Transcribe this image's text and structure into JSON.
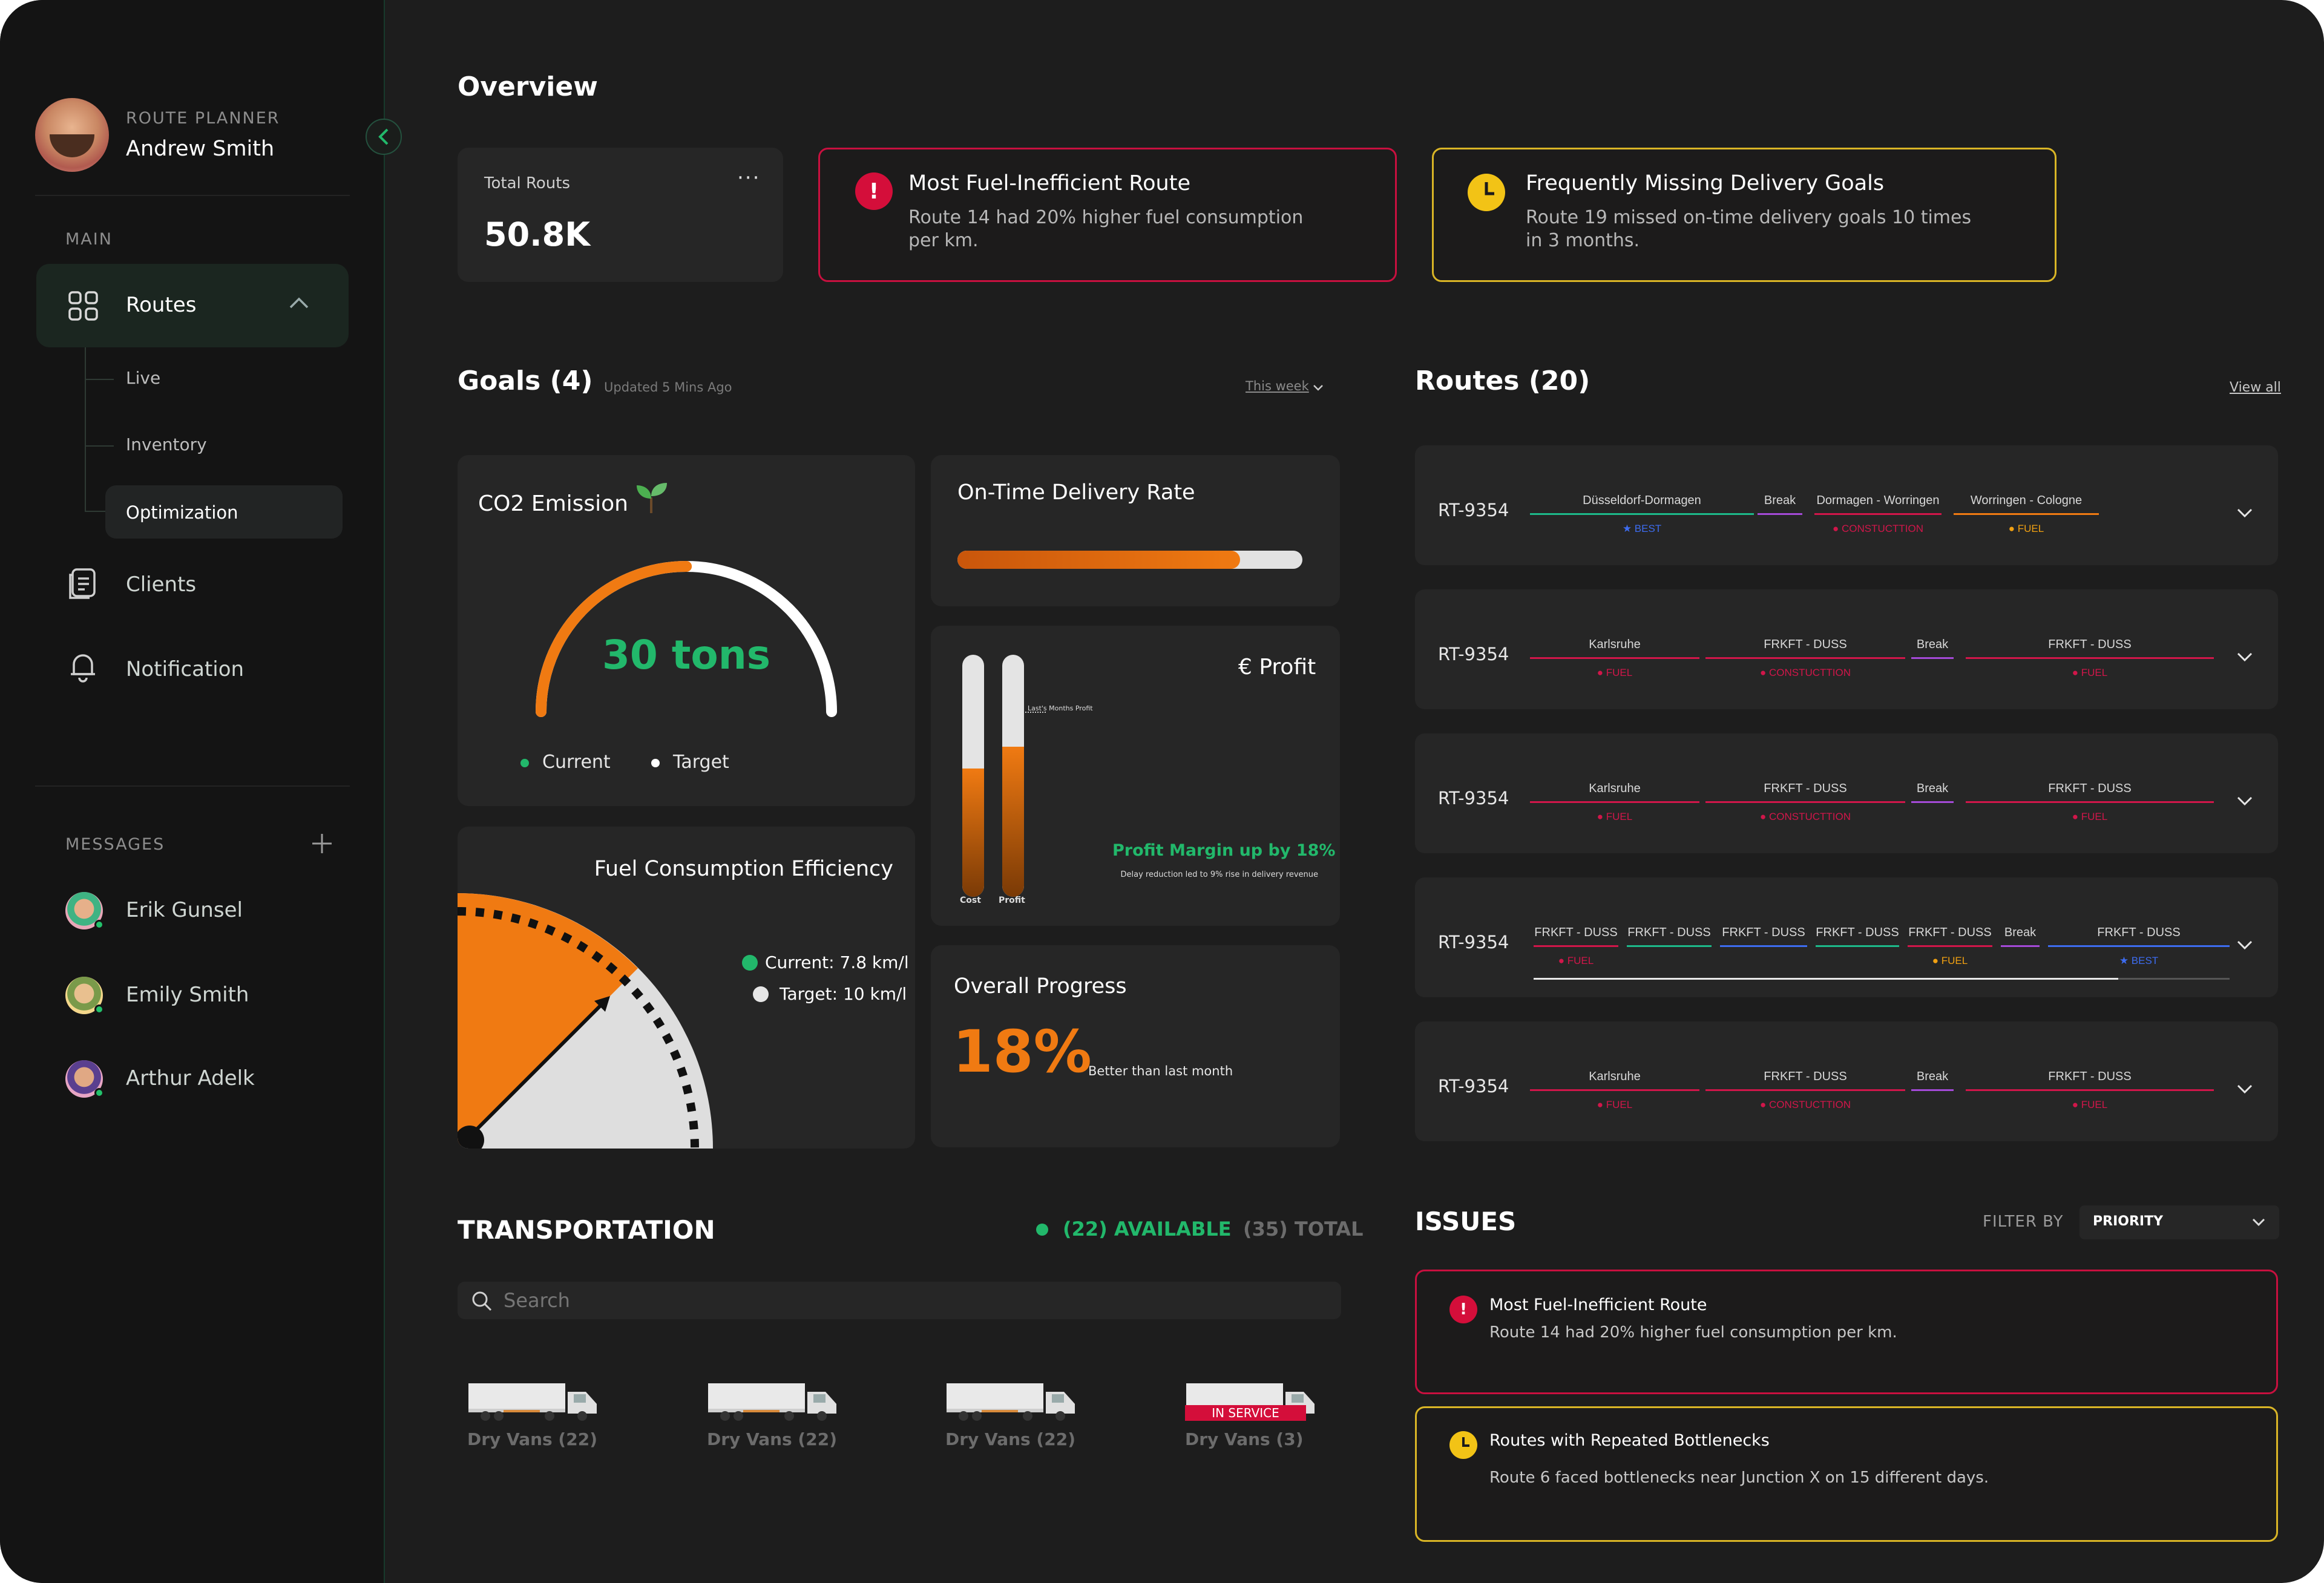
{
  "sidebar": {
    "user": {
      "role": "ROUTE PLANNER",
      "name": "Andrew Smith"
    },
    "main_label": "MAIN",
    "nav": {
      "routes": "Routes",
      "sub": [
        "Live",
        "Inventory",
        "Optimization"
      ],
      "clients": "Clients",
      "notification": "Notification"
    },
    "messages_label": "MESSAGES",
    "messages": [
      "Erik Gunsel",
      "Emily Smith",
      "Arthur Adelk"
    ]
  },
  "overview": {
    "title": "Overview",
    "total": {
      "label": "Total Routs",
      "value": "50.8K",
      "menu": "···"
    },
    "alert1": {
      "title": "Most Fuel-Inefficient Route",
      "text": "Route 14 had 20% higher fuel consumption per km."
    },
    "alert2": {
      "title": "Frequently Missing Delivery Goals",
      "text": "Route 19 missed on-time delivery goals 10 times in 3 months."
    }
  },
  "goals": {
    "title": "Goals (4)",
    "updated": "Updated 5 Mins Ago",
    "period": "This week",
    "co2": {
      "title": "CO2 Emission",
      "value": "30 tons",
      "legend_current": "Current",
      "legend_target": "Target",
      "progress": 0.5
    },
    "delivery": {
      "title": "On-Time Delivery Rate",
      "progress": 0.82
    },
    "profit": {
      "title": "€ Profit",
      "last_month_label": "Last's Months Profit",
      "headline": "Profit Margin up by 18%",
      "sub": "Delay reduction led to 9% rise in delivery revenue",
      "cost_label": "Cost",
      "profit_label": "Profit",
      "cost_fill": 0.53,
      "profit_fill": 0.62
    },
    "fuel": {
      "title": "Fuel Consumption Efficiency",
      "current": "Current: 7.8 km/l",
      "target": "Target: 10 km/l"
    },
    "overall": {
      "title": "Overall Progress",
      "value": "18%",
      "note": "Better than last month"
    }
  },
  "routes": {
    "title": "Routes (20)",
    "view_all": "View all",
    "rows": [
      {
        "id": "RT-9354",
        "segments": [
          {
            "label": "Düsseldorf-Dormagen",
            "tag": "★ BEST",
            "color": "#1db98a",
            "tagColor": "#3d6cf0"
          },
          {
            "label": "Break",
            "tag": "",
            "color": "#a44ad8",
            "tagColor": "#a44ad8"
          },
          {
            "label": "Dormagen - Worringen",
            "tag": "● CONSTUCTTION",
            "color": "#d1164a",
            "tagColor": "#d1164a"
          },
          {
            "label": "Worringen - Cologne",
            "tag": "● FUEL",
            "color": "#f07a12",
            "tagColor": "#f0a012"
          }
        ]
      },
      {
        "id": "RT-9354",
        "segments": [
          {
            "label": "Karlsruhe",
            "tag": "● FUEL",
            "color": "#d1164a",
            "tagColor": "#d1164a"
          },
          {
            "label": "FRKFT - DUSS",
            "tag": "● CONSTUCTTION",
            "color": "#d1164a",
            "tagColor": "#d1164a"
          },
          {
            "label": "Break",
            "tag": "",
            "color": "#a44ad8",
            "tagColor": "#a44ad8"
          },
          {
            "label": "FRKFT - DUSS",
            "tag": "● FUEL",
            "color": "#d1164a",
            "tagColor": "#d1164a"
          }
        ]
      },
      {
        "id": "RT-9354",
        "segments": [
          {
            "label": "Karlsruhe",
            "tag": "● FUEL",
            "color": "#d1164a",
            "tagColor": "#d1164a"
          },
          {
            "label": "FRKFT - DUSS",
            "tag": "● CONSTUCTTION",
            "color": "#d1164a",
            "tagColor": "#d1164a"
          },
          {
            "label": "Break",
            "tag": "",
            "color": "#a44ad8",
            "tagColor": "#a44ad8"
          },
          {
            "label": "FRKFT - DUSS",
            "tag": "● FUEL",
            "color": "#d1164a",
            "tagColor": "#d1164a"
          }
        ]
      },
      {
        "id": "RT-9354",
        "segments": [
          {
            "label": "FRKFT - DUSS",
            "tag": "● FUEL",
            "color": "#d1164a",
            "tagColor": "#d1164a"
          },
          {
            "label": "FRKFT - DUSS",
            "tag": "",
            "color": "#1db98a",
            "tagColor": "#1db98a"
          },
          {
            "label": "FRKFT - DUSS",
            "tag": "",
            "color": "#3d6cf0",
            "tagColor": "#3d6cf0"
          },
          {
            "label": "FRKFT - DUSS",
            "tag": "",
            "color": "#1db98a",
            "tagColor": "#1db98a"
          },
          {
            "label": "FRKFT - DUSS",
            "tag": "● FUEL",
            "color": "#d1164a",
            "tagColor": "#f0a012"
          },
          {
            "label": "Break",
            "tag": "",
            "color": "#a44ad8",
            "tagColor": "#a44ad8"
          },
          {
            "label": "FRKFT - DUSS",
            "tag": "★ BEST",
            "color": "#3d6cf0",
            "tagColor": "#3d6cf0"
          }
        ]
      },
      {
        "id": "RT-9354",
        "segments": [
          {
            "label": "Karlsruhe",
            "tag": "● FUEL",
            "color": "#d1164a",
            "tagColor": "#d1164a"
          },
          {
            "label": "FRKFT - DUSS",
            "tag": "● CONSTUCTTION",
            "color": "#d1164a",
            "tagColor": "#d1164a"
          },
          {
            "label": "Break",
            "tag": "",
            "color": "#a44ad8",
            "tagColor": "#a44ad8"
          },
          {
            "label": "FRKFT - DUSS",
            "tag": "● FUEL",
            "color": "#d1164a",
            "tagColor": "#d1164a"
          }
        ]
      }
    ]
  },
  "transportation": {
    "title": "TRANSPORTATION",
    "available": "(22) AVAILABLE",
    "total": "(35) TOTAL",
    "search_placeholder": "Search",
    "vehicles": [
      {
        "label": "Dry Vans (22)",
        "service": ""
      },
      {
        "label": "Dry Vans (22)",
        "service": ""
      },
      {
        "label": "Dry Vans (22)",
        "service": ""
      },
      {
        "label": "Dry Vans (3)",
        "service": "IN SERVICE"
      }
    ]
  },
  "issues": {
    "title": "ISSUES",
    "filter_label": "FILTER BY",
    "filter_value": "PRIORITY",
    "items": [
      {
        "title": "Most Fuel-Inefficient Route",
        "text": "Route 14 had 20% higher fuel consumption per km."
      },
      {
        "title": "Routes with Repeated Bottlenecks",
        "text": "Route 6 faced bottlenecks near Junction X on 15 different days."
      }
    ]
  },
  "colors": {
    "accent_orange": "#f07a12",
    "accent_green": "#22b86b",
    "alert_red": "#c8103f",
    "alert_yellow": "#d9b526"
  }
}
